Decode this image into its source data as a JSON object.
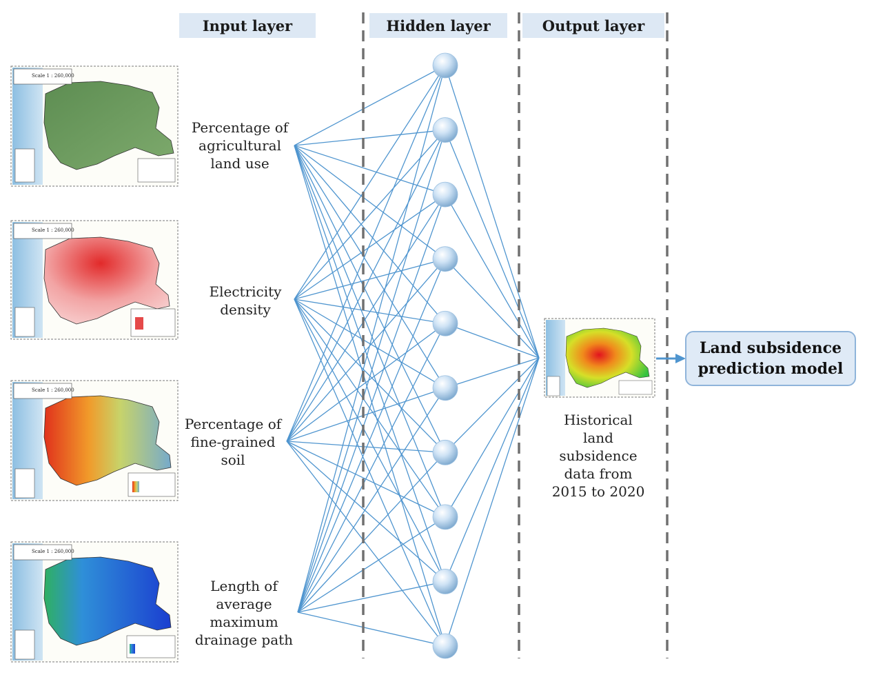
{
  "headers": {
    "input": "Input layer",
    "hidden": "Hidden layer",
    "output": "Output layer"
  },
  "inputs": [
    {
      "lines": [
        "Percentage of",
        "agricultural",
        "land use"
      ]
    },
    {
      "lines": [
        "Electricity",
        "density"
      ]
    },
    {
      "lines": [
        "Percentage of",
        "fine-grained",
        "soil"
      ]
    },
    {
      "lines": [
        "Length of",
        "average",
        "maximum",
        "drainage path"
      ]
    }
  ],
  "hidden_nodes": 10,
  "output_label": {
    "lines": [
      "Historical",
      "land",
      "subsidence",
      "data from",
      "2015 to 2020"
    ]
  },
  "model": {
    "line1": "Land subsidence",
    "line2": "prediction model"
  },
  "maps": [
    {
      "scale": "Scale 1 : 260,000",
      "theme": "land-use"
    },
    {
      "scale": "Scale 1 : 260,000",
      "theme": "electricity"
    },
    {
      "scale": "Scale 1 : 260,000",
      "theme": "soil"
    },
    {
      "scale": "Scale 1 : 260,000",
      "theme": "drainage"
    },
    {
      "scale": "",
      "theme": "subsidence"
    }
  ],
  "colors": {
    "header_bg": "#dde8f4",
    "edge": "#4f95cf",
    "divider": "#707070",
    "box_border": "#8fb4da",
    "box_bg": "#dfeaf6"
  }
}
